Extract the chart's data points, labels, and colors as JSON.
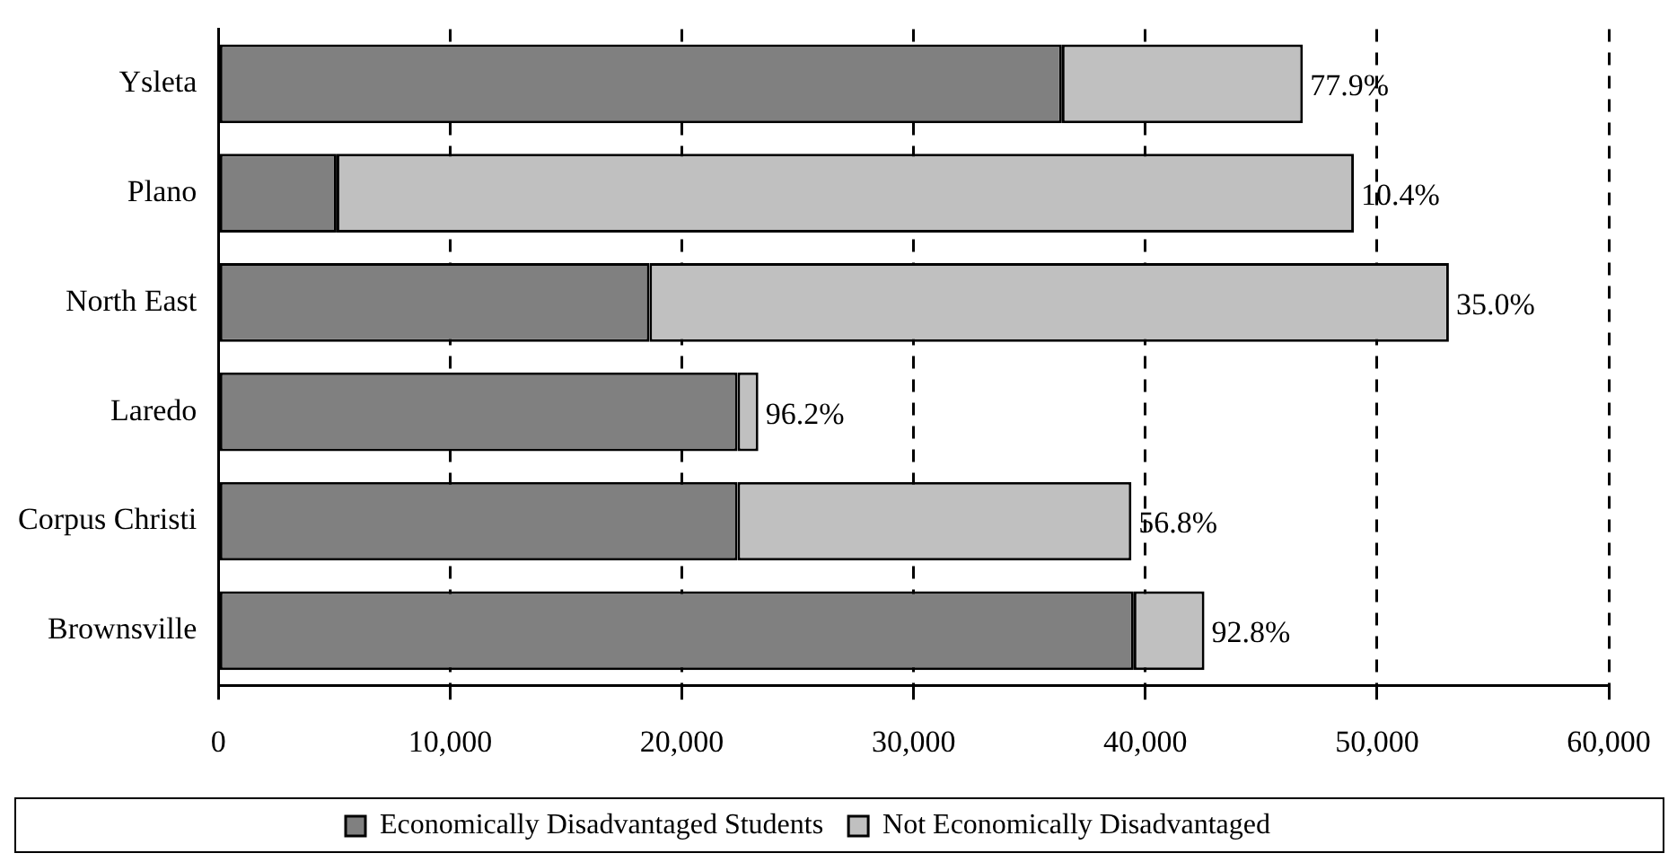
{
  "chart_data": {
    "type": "bar",
    "orientation": "horizontal",
    "stacked": true,
    "categories": [
      "Ysleta",
      "Plano",
      "North East",
      "Laredo",
      "Corpus Christi",
      "Brownsville"
    ],
    "series": [
      {
        "name": "Economically Disadvantaged Students",
        "color": "#808080",
        "values": [
          36400,
          5100,
          18600,
          22400,
          22400,
          39500
        ]
      },
      {
        "name": "Not Economically Disadvantaged",
        "color": "#c0c0c0",
        "values": [
          10400,
          43900,
          34500,
          900,
          17000,
          3050
        ]
      }
    ],
    "annotations": [
      {
        "text": "77.9%",
        "x": 46800,
        "y": "Ysleta"
      },
      {
        "text": "10.4%",
        "x": 49000,
        "y": "Plano"
      },
      {
        "text": "35.0%",
        "x": 53100,
        "y": "North East"
      },
      {
        "text": "96.2%",
        "x": 23300,
        "y": "Laredo"
      },
      {
        "text": "56.8%",
        "x": 39400,
        "y": "Corpus Christi"
      },
      {
        "text": "92.8%",
        "x": 42550,
        "y": "Brownsville"
      }
    ],
    "xlim": [
      0,
      60000
    ],
    "xticks": [
      0,
      {
        "value": 10000,
        "label": "10,000"
      },
      {
        "value": 20000,
        "label": "20,000"
      },
      {
        "value": 30000,
        "label": "30,000"
      },
      {
        "value": 40000,
        "label": "40,000"
      },
      {
        "value": 50000,
        "label": "50,000"
      },
      {
        "value": 60000,
        "label": "60,000"
      }
    ],
    "grid": "x",
    "legend": "bottom"
  }
}
